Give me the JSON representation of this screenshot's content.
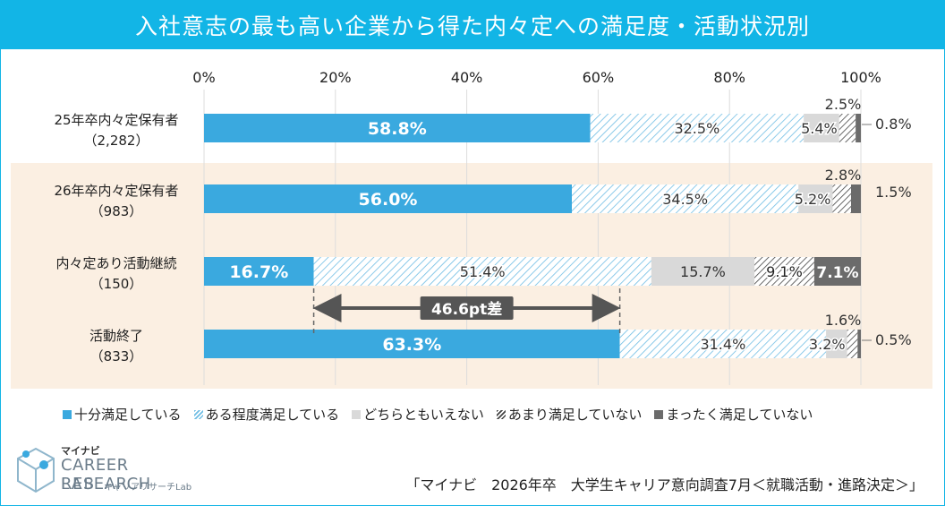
{
  "title": "入社意志の最も高い企業から得た内々定への満足度・活動状況別",
  "chart_data": {
    "type": "bar",
    "orientation": "horizontal",
    "stacked": true,
    "x_ticks": [
      "0%",
      "20%",
      "40%",
      "60%",
      "80%",
      "100%"
    ],
    "xlim": [
      0,
      100
    ],
    "categories": [
      {
        "label": "25年卒内々定保有者",
        "n": "（2,282）"
      },
      {
        "label": "26年卒内々定保有者",
        "n": "（983）"
      },
      {
        "label": "内々定あり活動継続",
        "n": "（150）"
      },
      {
        "label": "活動終了",
        "n": "（833）"
      }
    ],
    "series": [
      {
        "name": "十分満足している",
        "values": [
          58.8,
          56.0,
          16.7,
          63.3
        ],
        "labels": [
          "58.8%",
          "56.0%",
          "16.7%",
          "63.3%"
        ],
        "color": "#3aa9df"
      },
      {
        "name": "ある程度満足している",
        "values": [
          32.5,
          34.5,
          51.4,
          31.4
        ],
        "labels": [
          "32.5%",
          "34.5%",
          "51.4%",
          "31.4%"
        ],
        "color": "#8ccce9"
      },
      {
        "name": "どちらともいえない",
        "values": [
          5.4,
          5.2,
          15.7,
          3.2
        ],
        "labels": [
          "5.4%",
          "5.2%",
          "15.7%",
          "3.2%"
        ],
        "color": "#d9d9d9"
      },
      {
        "name": "あまり満足していない",
        "values": [
          2.5,
          2.8,
          9.1,
          1.6
        ],
        "labels": [
          "2.5%",
          "2.8%",
          "9.1%",
          "1.6%"
        ],
        "color": "#9a9a9a"
      },
      {
        "name": "まったく満足していない",
        "values": [
          0.8,
          1.5,
          7.1,
          0.5
        ],
        "labels": [
          "0.8%",
          "1.5%",
          "7.1%",
          "0.5%"
        ],
        "color": "#6b6b6b"
      }
    ],
    "annotation": {
      "text": "46.6pt差",
      "from_row": 2,
      "to_row": 3
    },
    "highlight_color": "#fbefe2",
    "legend_position": "bottom"
  },
  "logo": {
    "brand": "マイナビ",
    "line1": "CAREER RESEARCH",
    "line2": "LAB",
    "line2_sub": "キャリアリサーチLab"
  },
  "source": "「マイナビ　2026年卒　大学生キャリア意向調査7月＜就職活動・進路決定＞」"
}
